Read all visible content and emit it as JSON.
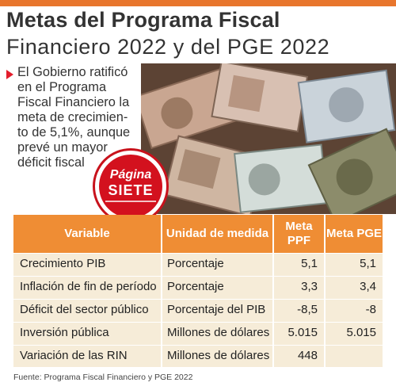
{
  "header": {
    "title_line1": "Metas del Programa Fiscal",
    "title_line2": "Financiero 2022 y del PGE 2022"
  },
  "lead": {
    "text": "El Gobierno ratificó\nen el Programa\nFiscal Financiero la\nmeta de crecimien-\nto de 5,1%, aunque\nprevé un mayor\ndéficit fiscal"
  },
  "badge": {
    "line1": "Página",
    "line2": "SIETE"
  },
  "table": {
    "headers": [
      "Variable",
      "Unidad de medida",
      "Meta PPF",
      "Meta PGE"
    ],
    "rows": [
      {
        "variable": "Crecimiento PIB",
        "unidad": "Porcentaje",
        "ppf": "5,1",
        "pge": "5,1"
      },
      {
        "variable": "Inflación de fin de período",
        "unidad": "Porcentaje",
        "ppf": "3,3",
        "pge": "3,4"
      },
      {
        "variable": "Déficit del sector público",
        "unidad": "Porcentaje del PIB",
        "ppf": "-8,5",
        "pge": "-8"
      },
      {
        "variable": "Inversión pública",
        "unidad": "Millones de dólares",
        "ppf": "5.015",
        "pge": "5.015"
      },
      {
        "variable": "Variación de las RIN",
        "unidad": "Millones de dólares",
        "ppf": "448",
        "pge": ""
      }
    ]
  },
  "source": "Fuente: Programa Fiscal Financiero y PGE 2022",
  "colors": {
    "accent_orange": "#ef8d34",
    "table_bg": "#f6ecd8",
    "badge_red": "#d3111e",
    "bullet_red": "#e31d2c"
  }
}
